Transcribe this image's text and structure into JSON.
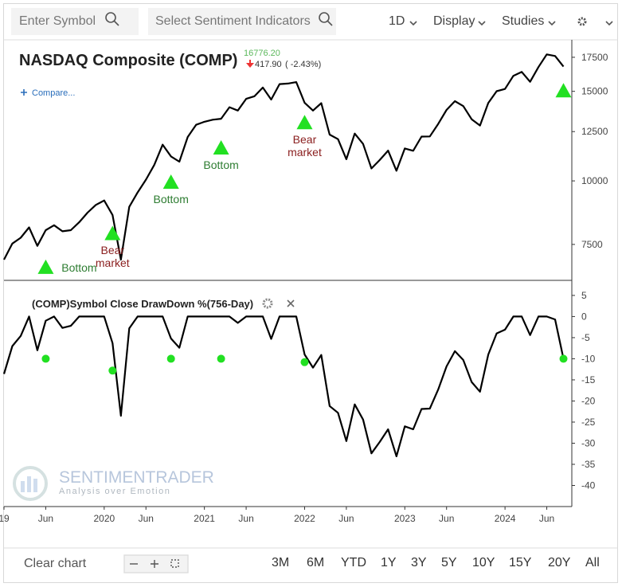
{
  "toolbar": {
    "symbol": "Enter Symbol",
    "indicators": "Select Sentiment Indicators",
    "interval": "1D",
    "display": "Display",
    "studies": "Studies"
  },
  "quote": {
    "last": "16776.20",
    "change": "417.90",
    "change_pct": "( -2.43%)",
    "compare": "Compare..."
  },
  "watermark": {
    "brand": "SENTIMENTRADER",
    "tagline": "Analysis over Emotion"
  },
  "footer": {
    "clear": "Clear chart",
    "ranges": [
      "3M",
      "6M",
      "YTD",
      "1Y",
      "3Y",
      "5Y",
      "10Y",
      "15Y",
      "20Y",
      "All"
    ]
  },
  "chart_data": [
    {
      "type": "line",
      "title": "NASDAQ Composite (COMP)",
      "scale": "log",
      "color": "#000000",
      "xlim": [
        "2019-01",
        "2024-09"
      ],
      "ylim": [
        6420,
        18940
      ],
      "yticks": [
        7500,
        10000,
        12500,
        15000,
        17500
      ],
      "x": [
        "2019-01",
        "2019-02",
        "2019-03",
        "2019-04",
        "2019-05",
        "2019-06",
        "2019-07",
        "2019-08",
        "2019-09",
        "2019-10",
        "2019-11",
        "2019-12",
        "2020-01",
        "2020-02",
        "2020-03",
        "2020-04",
        "2020-05",
        "2020-06",
        "2020-07",
        "2020-08",
        "2020-09",
        "2020-10",
        "2020-11",
        "2020-12",
        "2021-01",
        "2021-02",
        "2021-03",
        "2021-04",
        "2021-05",
        "2021-06",
        "2021-07",
        "2021-08",
        "2021-09",
        "2021-10",
        "2021-11",
        "2021-12",
        "2022-01",
        "2022-02",
        "2022-03",
        "2022-04",
        "2022-05",
        "2022-06",
        "2022-07",
        "2022-08",
        "2022-09",
        "2022-10",
        "2022-11",
        "2022-12",
        "2023-01",
        "2023-02",
        "2023-03",
        "2023-04",
        "2023-05",
        "2023-06",
        "2023-07",
        "2023-08",
        "2023-09",
        "2023-10",
        "2023-11",
        "2023-12",
        "2024-01",
        "2024-02",
        "2024-03",
        "2024-04",
        "2024-05",
        "2024-06",
        "2024-07",
        "2024-08"
      ],
      "values": [
        7000,
        7530,
        7730,
        8100,
        7450,
        8000,
        8180,
        7960,
        8000,
        8290,
        8660,
        8970,
        9150,
        8570,
        7000,
        8890,
        9490,
        10060,
        10750,
        11780,
        11170,
        10910,
        12200,
        12890,
        13070,
        13190,
        13250,
        13960,
        13750,
        14500,
        14670,
        15260,
        14450,
        15500,
        15540,
        15640,
        14240,
        13750,
        14220,
        12330,
        12080,
        11030,
        12390,
        11820,
        10580,
        10990,
        11470,
        10470,
        11580,
        11460,
        12220,
        12230,
        12940,
        13790,
        14350,
        14030,
        13220,
        12850,
        14230,
        15010,
        15160,
        16090,
        16380,
        15660,
        16740,
        17730,
        17600,
        16776.2
      ],
      "signals": {
        "color": "#22e022",
        "x": [
          "2019-06",
          "2020-02",
          "2020-09",
          "2021-03",
          "2022-01",
          "2024-08"
        ],
        "values": [
          6780,
          7900,
          9970,
          11640,
          13050,
          15080
        ],
        "labels": [
          "Bottom",
          "Bear market",
          "Bottom",
          "Bottom",
          "Bear market",
          null
        ]
      }
    },
    {
      "type": "line",
      "title": "(COMP)Symbol Close DrawDown %(756-Day)",
      "color": "#000000",
      "xlim": [
        "2019-01",
        "2024-09"
      ],
      "ylim": [
        -45,
        8
      ],
      "yticks": [
        5,
        0,
        -5,
        -10,
        -15,
        -20,
        -25,
        -30,
        -35,
        -40
      ],
      "xticks": [
        {
          "value": "2019-01",
          "label": "19"
        },
        {
          "value": "2019-06",
          "label": "Jun"
        },
        {
          "value": "2020-01",
          "label": "2020"
        },
        {
          "value": "2020-06",
          "label": "Jun"
        },
        {
          "value": "2021-01",
          "label": "2021"
        },
        {
          "value": "2021-06",
          "label": "Jun"
        },
        {
          "value": "2022-01",
          "label": "2022"
        },
        {
          "value": "2022-06",
          "label": "Jun"
        },
        {
          "value": "2023-01",
          "label": "2023"
        },
        {
          "value": "2023-06",
          "label": "Jun"
        },
        {
          "value": "2024-01",
          "label": "2024"
        },
        {
          "value": "2024-06",
          "label": "Jun"
        }
      ],
      "x": [
        "2019-01",
        "2019-02",
        "2019-03",
        "2019-04",
        "2019-05",
        "2019-06",
        "2019-07",
        "2019-08",
        "2019-09",
        "2019-10",
        "2019-11",
        "2019-12",
        "2020-01",
        "2020-02",
        "2020-03",
        "2020-04",
        "2020-05",
        "2020-06",
        "2020-07",
        "2020-08",
        "2020-09",
        "2020-10",
        "2020-11",
        "2020-12",
        "2021-01",
        "2021-02",
        "2021-03",
        "2021-04",
        "2021-05",
        "2021-06",
        "2021-07",
        "2021-08",
        "2021-09",
        "2021-10",
        "2021-11",
        "2021-12",
        "2022-01",
        "2022-02",
        "2022-03",
        "2022-04",
        "2022-05",
        "2022-06",
        "2022-07",
        "2022-08",
        "2022-09",
        "2022-10",
        "2022-11",
        "2022-12",
        "2023-01",
        "2023-02",
        "2023-03",
        "2023-04",
        "2023-05",
        "2023-06",
        "2023-07",
        "2023-08",
        "2023-09",
        "2023-10",
        "2023-11",
        "2023-12",
        "2024-01",
        "2024-02",
        "2024-03",
        "2024-04",
        "2024-05",
        "2024-06",
        "2024-07",
        "2024-08"
      ],
      "values": [
        -13.6,
        -7,
        -4.6,
        0,
        -8,
        -1,
        0,
        -2.7,
        -2.2,
        0,
        0,
        0,
        0,
        -6.3,
        -23.5,
        -2.8,
        0,
        0,
        0,
        0,
        -5.2,
        -7.4,
        0,
        0,
        0,
        0,
        0,
        0,
        -1.5,
        0,
        0,
        0,
        -5.3,
        0,
        0,
        0,
        -9,
        -12.1,
        -9.1,
        -21.2,
        -22.8,
        -29.5,
        -20.8,
        -24.4,
        -32.4,
        -29.7,
        -26.7,
        -33.1,
        -26,
        -26.7,
        -21.9,
        -21.8,
        -17.3,
        -11.8,
        -8.2,
        -10.3,
        -15.5,
        -17.8,
        -9,
        -4,
        -3.1,
        0,
        0,
        -4.4,
        0,
        0,
        -0.7,
        -10
      ],
      "signals": {
        "color": "#22e022",
        "x": [
          "2019-06",
          "2020-02",
          "2020-09",
          "2021-03",
          "2022-01",
          "2024-08"
        ],
        "values": [
          -10,
          -12.8,
          -10,
          -10,
          -10.8,
          -10
        ]
      }
    }
  ]
}
